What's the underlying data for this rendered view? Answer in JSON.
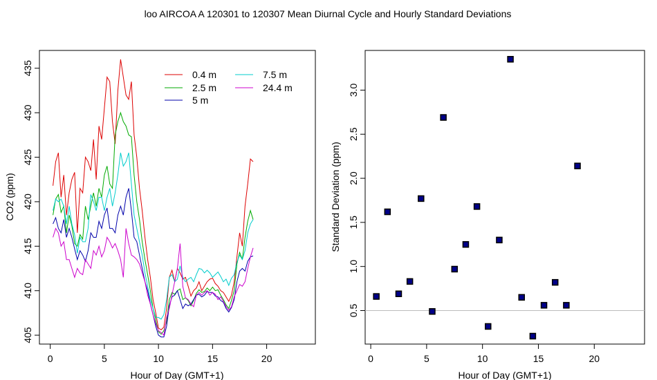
{
  "figure": {
    "title": "loo   AIRCOA A   120301 to 120307   Mean Diurnal Cycle and Hourly Standard Deviations"
  },
  "chart_data": [
    {
      "type": "line",
      "xlabel": "Hour of Day (GMT+1)",
      "ylabel": "CO2 (ppm)",
      "xlim": [
        -1,
        24.5
      ],
      "ylim": [
        404,
        437
      ],
      "xticks": [
        "0",
        "5",
        "10",
        "15",
        "20"
      ],
      "yticks": [
        "405",
        "410",
        "415",
        "420",
        "425",
        "430",
        "435"
      ],
      "grid": false,
      "legend_position": "top-right",
      "x": [
        0.25,
        0.5,
        0.75,
        1.0,
        1.25,
        1.5,
        1.75,
        2.0,
        2.25,
        2.5,
        2.75,
        3.0,
        3.25,
        3.5,
        3.75,
        4.0,
        4.25,
        4.5,
        4.75,
        5.0,
        5.25,
        5.5,
        5.75,
        6.0,
        6.25,
        6.5,
        6.75,
        7.0,
        7.25,
        7.5,
        7.75,
        8.0,
        8.25,
        8.5,
        8.75,
        9.0,
        9.25,
        9.5,
        9.75,
        10.0,
        10.25,
        10.5,
        10.75,
        11.0,
        11.25,
        11.5,
        11.75,
        12.0,
        12.25,
        12.5,
        12.75,
        13.0,
        13.25,
        13.5,
        13.75,
        14.0,
        14.25,
        14.5,
        14.75,
        15.0,
        15.25,
        15.5,
        15.75,
        16.0,
        16.25,
        16.5,
        16.75,
        17.0,
        17.25,
        17.5,
        17.75,
        18.0,
        18.25,
        18.5,
        18.75
      ],
      "series": [
        {
          "name": "0.4 m",
          "color": "#dd0000",
          "values": [
            421.8,
            424.5,
            425.5,
            420.5,
            423.0,
            418.5,
            421.0,
            422.5,
            423.3,
            416.5,
            421.5,
            421.0,
            425.0,
            424.5,
            423.5,
            427.0,
            422.5,
            428.5,
            427.0,
            430.5,
            434.0,
            433.5,
            429.0,
            426.5,
            432.5,
            436.0,
            434.0,
            432.0,
            431.5,
            433.5,
            427.5,
            425.0,
            421.5,
            419.0,
            416.0,
            413.5,
            411.5,
            409.0,
            407.5,
            405.8,
            405.6,
            405.9,
            408.0,
            411.5,
            412.3,
            411.0,
            412.5,
            412.0,
            411.3,
            411.5,
            410.5,
            409.4,
            410.0,
            410.3,
            411.0,
            410.0,
            410.5,
            411.0,
            411.3,
            411.4,
            410.8,
            410.5,
            410.0,
            409.8,
            409.3,
            408.8,
            409.5,
            411.0,
            413.8,
            416.5,
            415.0,
            419.5,
            422.0,
            424.8,
            424.5
          ]
        },
        {
          "name": "2.5 m",
          "color": "#00aa00",
          "values": [
            418.5,
            420.3,
            420.8,
            418.8,
            419.5,
            416.5,
            418.5,
            417.3,
            415.3,
            415.0,
            416.3,
            415.8,
            419.5,
            418.0,
            419.5,
            421.0,
            419.5,
            421.5,
            420.5,
            423.0,
            424.0,
            422.0,
            421.5,
            427.5,
            429.0,
            430.0,
            429.0,
            428.5,
            427.5,
            427.3,
            423.0,
            420.0,
            418.0,
            415.5,
            413.5,
            411.8,
            410.0,
            408.0,
            406.7,
            405.4,
            405.1,
            405.5,
            406.5,
            409.0,
            409.8,
            409.6,
            410.0,
            410.2,
            409.0,
            409.2,
            408.9,
            408.3,
            408.9,
            409.7,
            410.1,
            409.8,
            409.9,
            410.3,
            410.0,
            410.4,
            410.0,
            410.1,
            409.5,
            409.0,
            408.4,
            408.0,
            408.9,
            410.0,
            413.0,
            414.3,
            413.5,
            416.0,
            417.8,
            419.0,
            418.0
          ]
        },
        {
          "name": "5 m",
          "color": "#0000aa",
          "values": [
            417.5,
            418.2,
            417.0,
            416.5,
            418.0,
            416.0,
            417.0,
            416.0,
            414.7,
            413.5,
            414.5,
            414.0,
            413.3,
            414.5,
            416.5,
            416.0,
            416.0,
            417.8,
            417.0,
            418.5,
            419.3,
            417.0,
            417.0,
            416.5,
            418.5,
            419.5,
            418.5,
            420.5,
            421.5,
            419.0,
            416.0,
            415.5,
            414.0,
            412.5,
            411.0,
            410.0,
            408.5,
            407.3,
            406.0,
            405.0,
            404.8,
            404.8,
            406.0,
            408.3,
            409.3,
            409.5,
            410.0,
            409.0,
            408.0,
            408.5,
            408.3,
            408.5,
            409.0,
            409.5,
            409.6,
            409.3,
            409.5,
            409.9,
            409.8,
            409.8,
            409.4,
            409.3,
            408.9,
            408.7,
            408.0,
            407.6,
            408.1,
            409.0,
            411.0,
            412.2,
            412.5,
            412.2,
            413.3,
            413.8,
            413.9
          ]
        },
        {
          "name": "7.5 m",
          "color": "#00cccc",
          "values": [
            419.0,
            420.3,
            420.0,
            420.3,
            419.5,
            417.5,
            419.5,
            417.5,
            416.3,
            414.2,
            416.0,
            415.5,
            415.5,
            417.0,
            420.8,
            420.0,
            419.0,
            420.5,
            420.5,
            419.0,
            420.5,
            421.5,
            419.5,
            421.0,
            423.0,
            425.5,
            424.0,
            424.5,
            425.5,
            422.0,
            418.5,
            417.0,
            415.5,
            414.0,
            412.0,
            410.5,
            409.0,
            408.0,
            407.0,
            407.0,
            406.8,
            407.3,
            409.0,
            411.5,
            411.8,
            411.0,
            411.3,
            412.8,
            411.5,
            411.0,
            411.3,
            411.5,
            411.0,
            411.8,
            412.5,
            412.4,
            412.0,
            412.3,
            412.0,
            411.5,
            411.8,
            412.1,
            411.6,
            411.0,
            411.3,
            410.6,
            411.4,
            411.8,
            413.2,
            414.0,
            413.5,
            414.5,
            416.5,
            417.5,
            418.0
          ]
        },
        {
          "name": "24.4 m",
          "color": "#cc00cc",
          "values": [
            416.0,
            417.0,
            416.5,
            415.0,
            415.5,
            413.5,
            413.5,
            412.5,
            411.5,
            412.5,
            412.0,
            411.8,
            413.5,
            413.0,
            412.5,
            414.5,
            414.0,
            415.0,
            413.8,
            414.5,
            416.0,
            415.5,
            414.8,
            415.3,
            414.5,
            413.5,
            411.5,
            417.0,
            415.3,
            414.0,
            413.8,
            413.5,
            413.0,
            412.0,
            411.0,
            409.5,
            408.5,
            407.3,
            406.3,
            405.5,
            405.3,
            405.0,
            407.0,
            408.0,
            409.5,
            411.0,
            412.5,
            415.3,
            410.5,
            409.2,
            409.0,
            408.5,
            408.2,
            409.5,
            409.8,
            409.5,
            409.8,
            410.0,
            409.5,
            409.8,
            409.6,
            409.0,
            409.3,
            408.8,
            408.2,
            407.8,
            408.2,
            409.3,
            410.0,
            410.7,
            410.5,
            411.0,
            412.5,
            413.8,
            414.8
          ]
        }
      ]
    },
    {
      "type": "scatter",
      "xlabel": "Hour of Day (GMT+1)",
      "ylabel": "Standard Deviation (ppm)",
      "xlim": [
        -0.5,
        24.5
      ],
      "ylim": [
        0.12,
        3.45
      ],
      "xticks": [
        "0",
        "5",
        "10",
        "15",
        "20"
      ],
      "yticks": [
        "0.5",
        "1.0",
        "1.5",
        "2.0",
        "2.5",
        "3.0"
      ],
      "reference_line_y": 0.5,
      "reference_line_color": "#bbbbbb",
      "marker_color": "#000088",
      "marker_edge_color": "#000000",
      "x": [
        0.5,
        1.5,
        2.5,
        3.5,
        4.5,
        5.5,
        6.5,
        7.5,
        8.5,
        9.5,
        10.5,
        11.5,
        12.5,
        13.5,
        14.5,
        15.5,
        16.5,
        17.5,
        18.5
      ],
      "y": [
        0.66,
        1.62,
        0.69,
        0.83,
        1.77,
        0.49,
        2.69,
        0.97,
        1.25,
        1.68,
        0.32,
        1.3,
        3.35,
        0.65,
        0.21,
        0.56,
        0.82,
        0.56,
        2.14
      ]
    }
  ]
}
